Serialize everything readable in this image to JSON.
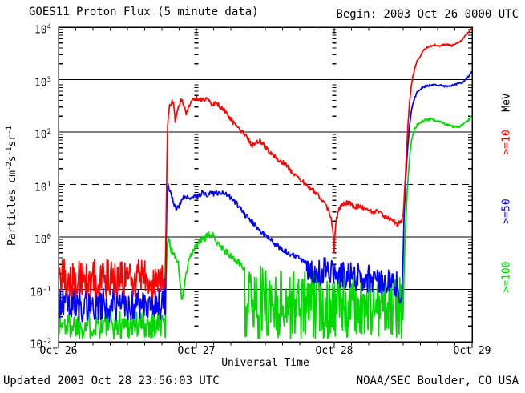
{
  "header": {
    "title": "GOES11 Proton Flux (5 minute data)",
    "begin": "Begin: 2003 Oct 26 0000 UTC"
  },
  "footer": {
    "updated": "Updated 2003 Oct 28 23:56:03 UTC",
    "credit": "NOAA/SEC Boulder, CO USA"
  },
  "x_axis": {
    "title": "Universal Time"
  },
  "y_axis": {
    "title_parts": [
      "Particles cm",
      "-2",
      "s",
      "-1",
      "sr",
      "-1"
    ]
  },
  "legend": {
    "unit_label": "MeV",
    "unit_color": "#000000",
    "items": [
      {
        "label": ">=10",
        "color": "#ff0000"
      },
      {
        "label": ">=50",
        "color": "#0000ff"
      },
      {
        "label": ">=100",
        "color": "#00d800"
      }
    ]
  },
  "chart_data": {
    "type": "line",
    "title": "GOES11 Proton Flux (5 minute data)",
    "xlabel": "Universal Time",
    "ylabel": "Particles cm^-2 s^-1 sr^-1",
    "x_unit": "days since 2003 Oct 26 0000 UTC",
    "xlim": [
      0,
      3
    ],
    "ylim": [
      0.01,
      10000
    ],
    "y_scale": "log",
    "grid": {
      "solid_decades": [
        3,
        2,
        0,
        -1
      ],
      "dashed_decades": [
        1
      ],
      "day_ladders": [
        1,
        2
      ]
    },
    "x_ticks": [
      {
        "label": "Oct 26",
        "t": 0
      },
      {
        "label": "Oct 27",
        "t": 1
      },
      {
        "label": "Oct 28",
        "t": 2
      },
      {
        "label": "Oct 29",
        "t": 3
      }
    ],
    "x_minor_tick_days": 0.125,
    "y_tick_exponents": [
      4,
      3,
      2,
      1,
      0,
      -1,
      -2
    ],
    "series": [
      {
        "name": ">=10 MeV",
        "color": "#ff0000",
        "segments": [
          {
            "mode": "noise",
            "t": [
              0.0,
              0.775
            ],
            "lo": 0.07,
            "hi": 0.38,
            "step": 0.0045
          },
          {
            "mode": "line",
            "jitter": 0.045,
            "points": [
              [
                0.775,
                0.28
              ],
              [
                0.781,
                2.5
              ],
              [
                0.787,
                35
              ],
              [
                0.792,
                120
              ],
              [
                0.798,
                230
              ],
              [
                0.806,
                310
              ],
              [
                0.818,
                360
              ],
              [
                0.828,
                385
              ],
              [
                0.838,
                310
              ],
              [
                0.846,
                170
              ],
              [
                0.854,
                195
              ],
              [
                0.865,
                255
              ],
              [
                0.876,
                320
              ],
              [
                0.888,
                410
              ],
              [
                0.898,
                395
              ],
              [
                0.912,
                300
              ],
              [
                0.926,
                235
              ],
              [
                0.944,
                290
              ],
              [
                0.962,
                375
              ],
              [
                0.982,
                425
              ],
              [
                1.004,
                450
              ],
              [
                1.028,
                420
              ],
              [
                1.05,
                400
              ],
              [
                1.07,
                435
              ],
              [
                1.09,
                385
              ],
              [
                1.11,
                330
              ],
              [
                1.13,
                355
              ],
              [
                1.155,
                335
              ],
              [
                1.18,
                295
              ],
              [
                1.205,
                255
              ],
              [
                1.23,
                200
              ],
              [
                1.26,
                160
              ],
              [
                1.3,
                118
              ],
              [
                1.34,
                100
              ],
              [
                1.375,
                72
              ],
              [
                1.405,
                55
              ],
              [
                1.435,
                64
              ],
              [
                1.465,
                67
              ],
              [
                1.5,
                52
              ],
              [
                1.545,
                38
              ],
              [
                1.59,
                30
              ],
              [
                1.64,
                25
              ],
              [
                1.69,
                18
              ],
              [
                1.73,
                14.5
              ],
              [
                1.77,
                11.5
              ],
              [
                1.81,
                9.2
              ],
              [
                1.85,
                7.6
              ],
              [
                1.89,
                6.0
              ],
              [
                1.925,
                4.6
              ],
              [
                1.955,
                3.4
              ],
              [
                1.978,
                2.3
              ],
              [
                1.992,
                1.1
              ],
              [
                1.999,
                0.55
              ],
              [
                2.004,
                1.0
              ],
              [
                2.012,
                1.9
              ],
              [
                2.025,
                2.7
              ],
              [
                2.04,
                3.5
              ],
              [
                2.06,
                4.1
              ],
              [
                2.09,
                4.5
              ],
              [
                2.12,
                4.2
              ],
              [
                2.15,
                3.7
              ],
              [
                2.19,
                3.9
              ],
              [
                2.23,
                3.3
              ],
              [
                2.27,
                3.0
              ],
              [
                2.31,
                3.15
              ],
              [
                2.35,
                2.6
              ],
              [
                2.39,
                2.25
              ],
              [
                2.425,
                2.05
              ],
              [
                2.455,
                1.75
              ],
              [
                2.475,
                1.85
              ],
              [
                2.49,
                2.1
              ],
              [
                2.5,
                2.6
              ]
            ]
          },
          {
            "mode": "line",
            "jitter": 0.015,
            "points": [
              [
                2.5,
                2.6
              ],
              [
                2.508,
                6
              ],
              [
                2.516,
                14
              ],
              [
                2.525,
                45
              ],
              [
                2.535,
                140
              ],
              [
                2.545,
                330
              ],
              [
                2.555,
                620
              ],
              [
                2.565,
                950
              ],
              [
                2.578,
                1400
              ],
              [
                2.59,
                1850
              ],
              [
                2.602,
                2300
              ],
              [
                2.62,
                2700
              ],
              [
                2.64,
                3400
              ],
              [
                2.67,
                4100
              ],
              [
                2.7,
                4400
              ],
              [
                2.73,
                4600
              ],
              [
                2.76,
                4350
              ],
              [
                2.79,
                4550
              ],
              [
                2.82,
                4700
              ],
              [
                2.85,
                4400
              ],
              [
                2.88,
                4800
              ],
              [
                2.91,
                5300
              ],
              [
                2.935,
                6100
              ],
              [
                2.955,
                7000
              ],
              [
                2.972,
                8000
              ],
              [
                2.985,
                8800
              ],
              [
                3.0,
                9800
              ]
            ]
          }
        ]
      },
      {
        "name": ">=50 MeV",
        "color": "#0000ff",
        "segments": [
          {
            "mode": "noise",
            "t": [
              0.0,
              0.775
            ],
            "lo": 0.024,
            "hi": 0.105,
            "step": 0.0045
          },
          {
            "mode": "line",
            "jitter": 0.05,
            "points": [
              [
                0.775,
                0.06
              ],
              [
                0.78,
                0.5
              ],
              [
                0.785,
                3.2
              ],
              [
                0.79,
                7.5
              ],
              [
                0.795,
                9.8
              ],
              [
                0.805,
                8.2
              ],
              [
                0.818,
                6.4
              ],
              [
                0.83,
                5.0
              ],
              [
                0.843,
                3.9
              ],
              [
                0.858,
                3.3
              ],
              [
                0.875,
                4.1
              ],
              [
                0.895,
                5.3
              ],
              [
                0.92,
                6.1
              ],
              [
                0.95,
                5.7
              ],
              [
                0.98,
                6.3
              ],
              [
                1.01,
                6.0
              ],
              [
                1.04,
                6.9
              ],
              [
                1.07,
                6.3
              ],
              [
                1.1,
                7.1
              ],
              [
                1.13,
                6.6
              ],
              [
                1.16,
                7.0
              ],
              [
                1.2,
                6.6
              ],
              [
                1.24,
                5.9
              ],
              [
                1.28,
                4.7
              ],
              [
                1.32,
                3.5
              ],
              [
                1.36,
                2.5
              ],
              [
                1.4,
                2.0
              ],
              [
                1.44,
                1.55
              ],
              [
                1.48,
                1.2
              ],
              [
                1.52,
                0.95
              ],
              [
                1.57,
                0.75
              ],
              [
                1.62,
                0.58
              ],
              [
                1.67,
                0.49
              ],
              [
                1.72,
                0.43
              ],
              [
                1.76,
                0.38
              ],
              [
                1.8,
                0.34
              ]
            ]
          },
          {
            "mode": "noise",
            "t": [
              1.8,
              2.46
            ],
            "lo": [
              0.13,
              0.07
            ],
            "hi": [
              0.45,
              0.25
            ],
            "step": 0.0045
          },
          {
            "mode": "line",
            "jitter": 0.02,
            "points": [
              [
                2.46,
                0.1
              ],
              [
                2.475,
                0.055
              ],
              [
                2.49,
                0.07
              ],
              [
                2.5,
                0.5
              ],
              [
                2.505,
                2
              ],
              [
                2.515,
                8
              ],
              [
                2.53,
                40
              ],
              [
                2.545,
                120
              ],
              [
                2.56,
                260
              ],
              [
                2.58,
                420
              ],
              [
                2.6,
                560
              ],
              [
                2.63,
                680
              ],
              [
                2.66,
                740
              ],
              [
                2.7,
                790
              ],
              [
                2.74,
                780
              ],
              [
                2.78,
                760
              ],
              [
                2.82,
                750
              ],
              [
                2.86,
                780
              ],
              [
                2.9,
                830
              ],
              [
                2.93,
                900
              ],
              [
                2.96,
                1050
              ],
              [
                2.98,
                1200
              ],
              [
                3.0,
                1400
              ]
            ]
          }
        ]
      },
      {
        "name": ">=100 MeV",
        "color": "#00d800",
        "segments": [
          {
            "mode": "noise",
            "t": [
              0.0,
              0.775
            ],
            "lo": 0.011,
            "hi": 0.042,
            "step": 0.0045
          },
          {
            "mode": "line",
            "jitter": 0.07,
            "points": [
              [
                0.775,
                0.02
              ],
              [
                0.781,
                0.18
              ],
              [
                0.787,
                0.6
              ],
              [
                0.793,
                0.85
              ],
              [
                0.8,
                0.92
              ],
              [
                0.812,
                0.6
              ],
              [
                0.83,
                0.5
              ],
              [
                0.85,
                0.44
              ],
              [
                0.868,
                0.3
              ],
              [
                0.882,
                0.14
              ],
              [
                0.893,
                0.06
              ],
              [
                0.905,
                0.09
              ],
              [
                0.92,
                0.16
              ],
              [
                0.94,
                0.3
              ],
              [
                0.96,
                0.44
              ],
              [
                0.98,
                0.54
              ],
              [
                1.0,
                0.68
              ],
              [
                1.02,
                0.78
              ],
              [
                1.05,
                0.92
              ],
              [
                1.08,
                1.02
              ],
              [
                1.1,
                1.12
              ],
              [
                1.12,
                1.05
              ],
              [
                1.15,
                0.82
              ],
              [
                1.18,
                0.66
              ],
              [
                1.21,
                0.52
              ],
              [
                1.25,
                0.43
              ],
              [
                1.3,
                0.33
              ],
              [
                1.35,
                0.26
              ]
            ]
          },
          {
            "mode": "noise",
            "t": [
              1.35,
              2.5
            ],
            "lo": [
              0.011,
              0.011
            ],
            "hi": [
              0.3,
              0.18
            ],
            "step": 0.0045
          },
          {
            "mode": "line",
            "jitter": 0.025,
            "points": [
              [
                2.5,
                0.04
              ],
              [
                2.505,
                0.15
              ],
              [
                2.515,
                1.2
              ],
              [
                2.53,
                8
              ],
              [
                2.545,
                30
              ],
              [
                2.56,
                70
              ],
              [
                2.58,
                110
              ],
              [
                2.6,
                135
              ],
              [
                2.63,
                155
              ],
              [
                2.66,
                170
              ],
              [
                2.7,
                175
              ],
              [
                2.74,
                168
              ],
              [
                2.78,
                155
              ],
              [
                2.82,
                140
              ],
              [
                2.86,
                128
              ],
              [
                2.9,
                122
              ],
              [
                2.93,
                135
              ],
              [
                2.96,
                155
              ],
              [
                2.98,
                175
              ],
              [
                3.0,
                200
              ]
            ]
          }
        ]
      }
    ]
  }
}
